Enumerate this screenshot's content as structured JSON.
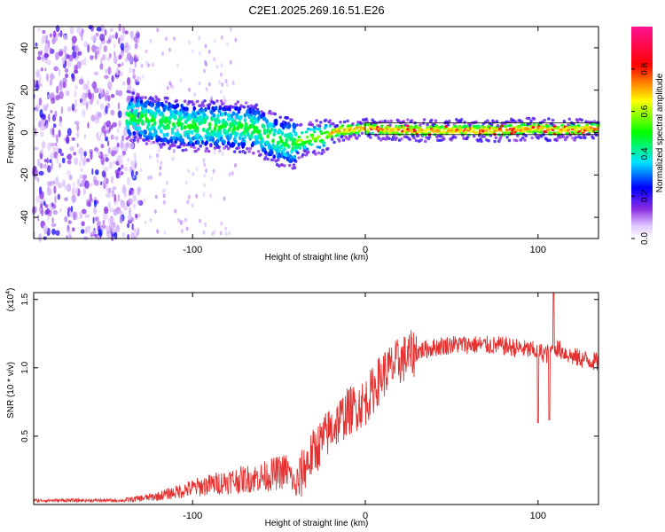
{
  "title": "C2E1.2025.269.16.51.E26",
  "colorbar": {
    "label": "Normalized spectral amplitude",
    "range": [
      0.0,
      1.0
    ],
    "ticks": [
      "0.0",
      "0.2",
      "0.4",
      "0.6",
      "0.8"
    ]
  },
  "chart_data": [
    {
      "type": "heatmap",
      "name": "spectrogram",
      "xlabel": "Height of straight line (km)",
      "ylabel": "Frequency (Hz)",
      "xlim": [
        -192,
        135
      ],
      "ylim": [
        -50,
        50
      ],
      "xticks": [
        "-100",
        "0",
        "100"
      ],
      "xtick_values": [
        -100,
        0,
        100
      ],
      "yticks": [
        "-40",
        "-20",
        "0",
        "20",
        "40"
      ],
      "ytick_values": [
        -40,
        -20,
        0,
        20,
        40
      ],
      "ridge": {
        "x": [
          -138,
          -120,
          -100,
          -80,
          -65,
          -50,
          -42,
          -35,
          -25,
          -15,
          0,
          20,
          50,
          80,
          100,
          110,
          135
        ],
        "y": [
          8,
          5,
          3,
          3,
          2,
          -4,
          -5,
          -3,
          -2,
          1,
          2,
          1,
          1,
          1,
          2,
          1,
          2
        ]
      },
      "noise_region": [
        -192,
        -130
      ]
    },
    {
      "type": "line",
      "name": "snr",
      "xlabel": "Height of straight line (km)",
      "ylabel": "SNR (10 * v/v)",
      "multiplier_base": "(x10",
      "multiplier_exp": "4",
      "multiplier_end": ")",
      "xlim": [
        -192,
        135
      ],
      "ylim": [
        0,
        1.55
      ],
      "xticks": [
        "-100",
        "0",
        "100"
      ],
      "xtick_values": [
        -100,
        0,
        100
      ],
      "yticks": [
        "0.5",
        "1.0",
        "1.5"
      ],
      "ytick_values": [
        0.5,
        1.0,
        1.5
      ],
      "color": "#e53030",
      "envelope": {
        "x": [
          -192,
          -140,
          -120,
          -100,
          -80,
          -60,
          -45,
          -40,
          -35,
          -30,
          -20,
          -10,
          0,
          10,
          20,
          30,
          40,
          50,
          60,
          80,
          100,
          105,
          110,
          120,
          135
        ],
        "y": [
          0.03,
          0.03,
          0.06,
          0.12,
          0.17,
          0.2,
          0.25,
          0.12,
          0.28,
          0.38,
          0.55,
          0.68,
          0.75,
          0.95,
          1.05,
          1.12,
          1.15,
          1.17,
          1.17,
          1.16,
          1.12,
          1.1,
          1.15,
          1.08,
          1.04
        ]
      }
    }
  ]
}
